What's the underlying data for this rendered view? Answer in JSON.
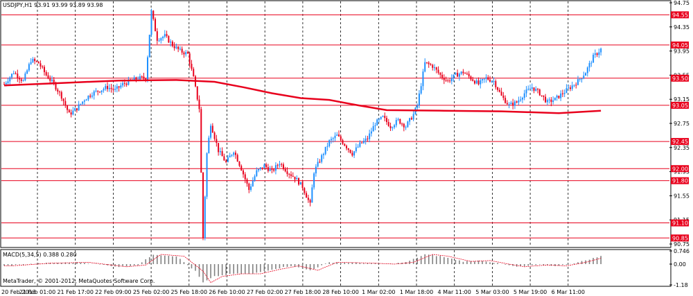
{
  "header": {
    "symbol_info": "USDJPY,H1 93.91 93.99 93.89 93.98",
    "macd_label": "MACD(5,34,5) 0.388 0.280",
    "copyright": "MetaTrader, © 2001-2012, MetaQuotes Software Corp."
  },
  "colors": {
    "bull": "#1e90ff",
    "bear": "#e8001c",
    "ma": "#e8001c",
    "level": "#e8001c",
    "grid": "#000000",
    "macd_hist": "#808080",
    "macd_signal": "#e8001c"
  },
  "chart_data": [
    {
      "type": "candlestick",
      "title": "",
      "price_axis_ticks": [
        "94.75",
        "94.35",
        "93.95",
        "93.55",
        "93.15",
        "92.75",
        "92.35",
        "91.95",
        "91.55",
        "91.15",
        "90.75"
      ],
      "ylim": [
        90.75,
        94.75
      ],
      "time_labels": [
        "20 Feb 2013",
        "21 Feb 01:00",
        "21 Feb 17:00",
        "22 Feb 09:00",
        "25 Feb 02:00",
        "25 Feb 18:00",
        "26 Feb 10:00",
        "27 Feb 02:00",
        "27 Feb 18:00",
        "28 Feb 10:00",
        "1 Mar 02:00",
        "1 Mar 18:00",
        "4 Mar 11:00",
        "5 Mar 03:00",
        "5 Mar 19:00",
        "6 Mar 11:00"
      ],
      "levels": [
        {
          "label": "94.55",
          "value": 94.55
        },
        {
          "label": "94.05",
          "value": 94.05
        },
        {
          "label": "93.50",
          "value": 93.5
        },
        {
          "label": "93.05",
          "value": 93.05
        },
        {
          "label": "92.45",
          "value": 92.45
        },
        {
          "label": "92.00",
          "value": 92.0
        },
        {
          "label": "91.80",
          "value": 91.8
        },
        {
          "label": "91.10",
          "value": 91.1
        },
        {
          "label": "90.85",
          "value": 90.85
        }
      ],
      "moving_average": [
        {
          "t": 0,
          "v": 93.38
        },
        {
          "t": 30,
          "v": 93.42
        },
        {
          "t": 60,
          "v": 93.46
        },
        {
          "t": 90,
          "v": 93.47
        },
        {
          "t": 110,
          "v": 93.44
        },
        {
          "t": 125,
          "v": 93.35
        },
        {
          "t": 140,
          "v": 93.25
        },
        {
          "t": 155,
          "v": 93.17
        },
        {
          "t": 170,
          "v": 93.14
        },
        {
          "t": 185,
          "v": 93.05
        },
        {
          "t": 200,
          "v": 92.97
        },
        {
          "t": 230,
          "v": 92.96
        },
        {
          "t": 260,
          "v": 92.95
        },
        {
          "t": 290,
          "v": 92.92
        },
        {
          "t": 312,
          "v": 92.96
        }
      ],
      "ohlc_path": [
        [
          0,
          93.4
        ],
        [
          5,
          93.6
        ],
        [
          10,
          93.45
        ],
        [
          14,
          93.8
        ],
        [
          18,
          93.75
        ],
        [
          22,
          93.55
        ],
        [
          26,
          93.4
        ],
        [
          30,
          93.2
        ],
        [
          34,
          92.9
        ],
        [
          38,
          93.0
        ],
        [
          42,
          93.15
        ],
        [
          46,
          93.25
        ],
        [
          50,
          93.3
        ],
        [
          54,
          93.35
        ],
        [
          58,
          93.3
        ],
        [
          62,
          93.4
        ],
        [
          66,
          93.45
        ],
        [
          70,
          93.5
        ],
        [
          74,
          93.5
        ],
        [
          77,
          94.6
        ],
        [
          80,
          94.15
        ],
        [
          84,
          94.2
        ],
        [
          88,
          94.05
        ],
        [
          92,
          93.95
        ],
        [
          96,
          93.9
        ],
        [
          99,
          93.5
        ],
        [
          102,
          93.0
        ],
        [
          104,
          90.85
        ],
        [
          106,
          92.25
        ],
        [
          108,
          92.75
        ],
        [
          112,
          92.3
        ],
        [
          116,
          92.1
        ],
        [
          120,
          92.3
        ],
        [
          124,
          92.0
        ],
        [
          128,
          91.65
        ],
        [
          132,
          91.95
        ],
        [
          136,
          92.05
        ],
        [
          140,
          91.95
        ],
        [
          144,
          92.1
        ],
        [
          148,
          91.95
        ],
        [
          152,
          91.85
        ],
        [
          156,
          91.7
        ],
        [
          158,
          91.55
        ],
        [
          160,
          91.4
        ],
        [
          162,
          91.95
        ],
        [
          166,
          92.2
        ],
        [
          170,
          92.45
        ],
        [
          174,
          92.55
        ],
        [
          178,
          92.4
        ],
        [
          182,
          92.25
        ],
        [
          186,
          92.4
        ],
        [
          190,
          92.5
        ],
        [
          194,
          92.75
        ],
        [
          198,
          92.85
        ],
        [
          202,
          92.7
        ],
        [
          206,
          92.8
        ],
        [
          210,
          92.7
        ],
        [
          214,
          92.9
        ],
        [
          216,
          93.05
        ],
        [
          220,
          93.75
        ],
        [
          224,
          93.7
        ],
        [
          228,
          93.55
        ],
        [
          232,
          93.45
        ],
        [
          236,
          93.55
        ],
        [
          240,
          93.6
        ],
        [
          244,
          93.5
        ],
        [
          248,
          93.4
        ],
        [
          252,
          93.5
        ],
        [
          256,
          93.45
        ],
        [
          260,
          93.2
        ],
        [
          264,
          93.05
        ],
        [
          268,
          93.1
        ],
        [
          272,
          93.25
        ],
        [
          276,
          93.35
        ],
        [
          280,
          93.25
        ],
        [
          284,
          93.1
        ],
        [
          288,
          93.15
        ],
        [
          292,
          93.25
        ],
        [
          296,
          93.35
        ],
        [
          300,
          93.45
        ],
        [
          304,
          93.6
        ],
        [
          308,
          93.85
        ],
        [
          312,
          93.98
        ]
      ],
      "xlabel": "",
      "ylabel": ""
    },
    {
      "type": "macd",
      "title": "MACD(5,34,5) 0.388 0.280",
      "axis_ticks": [
        "0.746",
        "0.00",
        "-1.18"
      ],
      "ylim": [
        -1.18,
        0.746
      ],
      "hist_path": [
        [
          0,
          -0.1
        ],
        [
          20,
          0.05
        ],
        [
          40,
          0.1
        ],
        [
          60,
          -0.15
        ],
        [
          70,
          -0.05
        ],
        [
          78,
          0.55
        ],
        [
          90,
          0.45
        ],
        [
          100,
          -0.4
        ],
        [
          104,
          -1.05
        ],
        [
          110,
          -0.7
        ],
        [
          120,
          -0.55
        ],
        [
          130,
          -0.55
        ],
        [
          140,
          -0.3
        ],
        [
          150,
          -0.1
        ],
        [
          160,
          -0.35
        ],
        [
          170,
          0.1
        ],
        [
          180,
          0.08
        ],
        [
          190,
          0.05
        ],
        [
          200,
          0.0
        ],
        [
          210,
          0.1
        ],
        [
          220,
          0.55
        ],
        [
          228,
          0.45
        ],
        [
          240,
          0.15
        ],
        [
          250,
          0.2
        ],
        [
          260,
          0.0
        ],
        [
          268,
          -0.15
        ],
        [
          280,
          -0.05
        ],
        [
          290,
          -0.1
        ],
        [
          300,
          0.1
        ],
        [
          312,
          0.45
        ]
      ]
    }
  ]
}
